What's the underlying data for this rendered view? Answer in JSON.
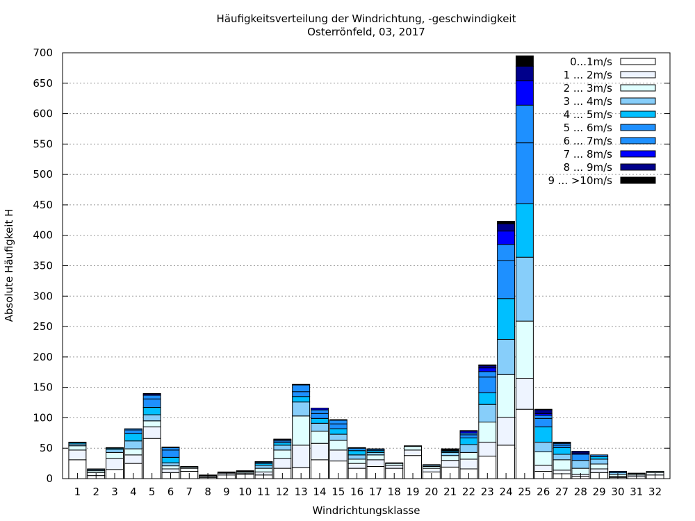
{
  "chart_data": {
    "type": "bar",
    "stacked": true,
    "title": "Häufigkeitsverteilung der Windrichtung, -geschwindigkeit",
    "subtitle": "Osterrönfeld, 03, 2017",
    "xlabel": "Windrichtungsklasse",
    "ylabel": "Absolute Häufigkeit H",
    "ylim": [
      0,
      700
    ],
    "yticks": [
      0,
      50,
      100,
      150,
      200,
      250,
      300,
      350,
      400,
      450,
      500,
      550,
      600,
      650,
      700
    ],
    "grid": true,
    "legend_position": "top-right",
    "categories": [
      "1",
      "2",
      "3",
      "4",
      "5",
      "6",
      "7",
      "8",
      "9",
      "10",
      "11",
      "12",
      "13",
      "14",
      "15",
      "16",
      "17",
      "18",
      "19",
      "20",
      "21",
      "22",
      "23",
      "24",
      "25",
      "26",
      "27",
      "28",
      "29",
      "30",
      "31",
      "32"
    ],
    "series": [
      {
        "name": "0...1m/s",
        "color": "#ffffff",
        "values": [
          31,
          5,
          15,
          25,
          66,
          10,
          12,
          2,
          6,
          7,
          6,
          17,
          18,
          31,
          29,
          17,
          20,
          17,
          38,
          11,
          19,
          16,
          37,
          55,
          114,
          12,
          8,
          4,
          10,
          2,
          3,
          6
        ]
      },
      {
        "name": "1 ... 2m/s",
        "color": "#eef4ff",
        "values": [
          16,
          5,
          18,
          14,
          19,
          6,
          5,
          2,
          3,
          2,
          5,
          16,
          37,
          27,
          18,
          8,
          11,
          5,
          9,
          6,
          11,
          16,
          23,
          46,
          51,
          10,
          6,
          3,
          6,
          2,
          3,
          4
        ]
      },
      {
        "name": "2 ... 3m/s",
        "color": "#e0ffff",
        "values": [
          7,
          3,
          10,
          10,
          10,
          5,
          2,
          1,
          1,
          2,
          6,
          14,
          48,
          20,
          16,
          7,
          8,
          3,
          6,
          3,
          8,
          11,
          33,
          70,
          94,
          22,
          17,
          10,
          8,
          3,
          2,
          2
        ]
      },
      {
        "name": "3 ... 4m/s",
        "color": "#87cefa",
        "values": [
          3,
          2,
          5,
          13,
          10,
          5,
          1,
          1,
          1,
          1,
          5,
          8,
          23,
          13,
          10,
          7,
          4,
          1,
          1,
          2,
          5,
          13,
          29,
          58,
          105,
          16,
          9,
          13,
          8,
          3,
          1,
          0
        ]
      },
      {
        "name": "4 ... 5m/s",
        "color": "#00bfff",
        "values": [
          2,
          1,
          2,
          12,
          12,
          9,
          0,
          0,
          0,
          1,
          3,
          4,
          9,
          8,
          9,
          7,
          3,
          0,
          0,
          1,
          2,
          11,
          19,
          67,
          88,
          25,
          11,
          0,
          4,
          0,
          0,
          0
        ]
      },
      {
        "name": "5 ... 6m/s",
        "color": "#1e90ff",
        "values": [
          1,
          0,
          1,
          6,
          14,
          12,
          0,
          0,
          0,
          0,
          2,
          3,
          8,
          8,
          8,
          4,
          2,
          0,
          0,
          0,
          1,
          5,
          26,
          62,
          100,
          14,
          4,
          10,
          3,
          2,
          0,
          0
        ]
      },
      {
        "name": "6 ... 7m/s",
        "color": "#1e90ff",
        "values": [
          0,
          0,
          0,
          2,
          6,
          4,
          0,
          0,
          0,
          0,
          1,
          2,
          11,
          6,
          6,
          1,
          1,
          0,
          0,
          0,
          1,
          3,
          9,
          27,
          62,
          5,
          3,
          0,
          0,
          0,
          0,
          0
        ]
      },
      {
        "name": "7 ... 8m/s",
        "color": "#0000ff",
        "values": [
          0,
          0,
          0,
          0,
          2,
          1,
          0,
          0,
          0,
          0,
          0,
          1,
          1,
          3,
          1,
          0,
          0,
          0,
          0,
          0,
          0,
          3,
          6,
          22,
          40,
          3,
          1,
          2,
          0,
          0,
          0,
          0
        ]
      },
      {
        "name": "8 ... 9m/s",
        "color": "#00008b",
        "values": [
          0,
          0,
          0,
          0,
          1,
          0,
          0,
          0,
          0,
          0,
          0,
          0,
          0,
          0,
          0,
          0,
          0,
          0,
          0,
          0,
          0,
          1,
          4,
          12,
          24,
          6,
          1,
          3,
          0,
          0,
          0,
          0
        ]
      },
      {
        "name": "9 ... >10m/s",
        "color": "#000000",
        "values": [
          0,
          0,
          0,
          0,
          0,
          0,
          0,
          0,
          0,
          0,
          0,
          0,
          0,
          0,
          0,
          0,
          0,
          0,
          0,
          0,
          2,
          0,
          1,
          4,
          17,
          1,
          0,
          0,
          0,
          0,
          0,
          0
        ]
      }
    ]
  }
}
